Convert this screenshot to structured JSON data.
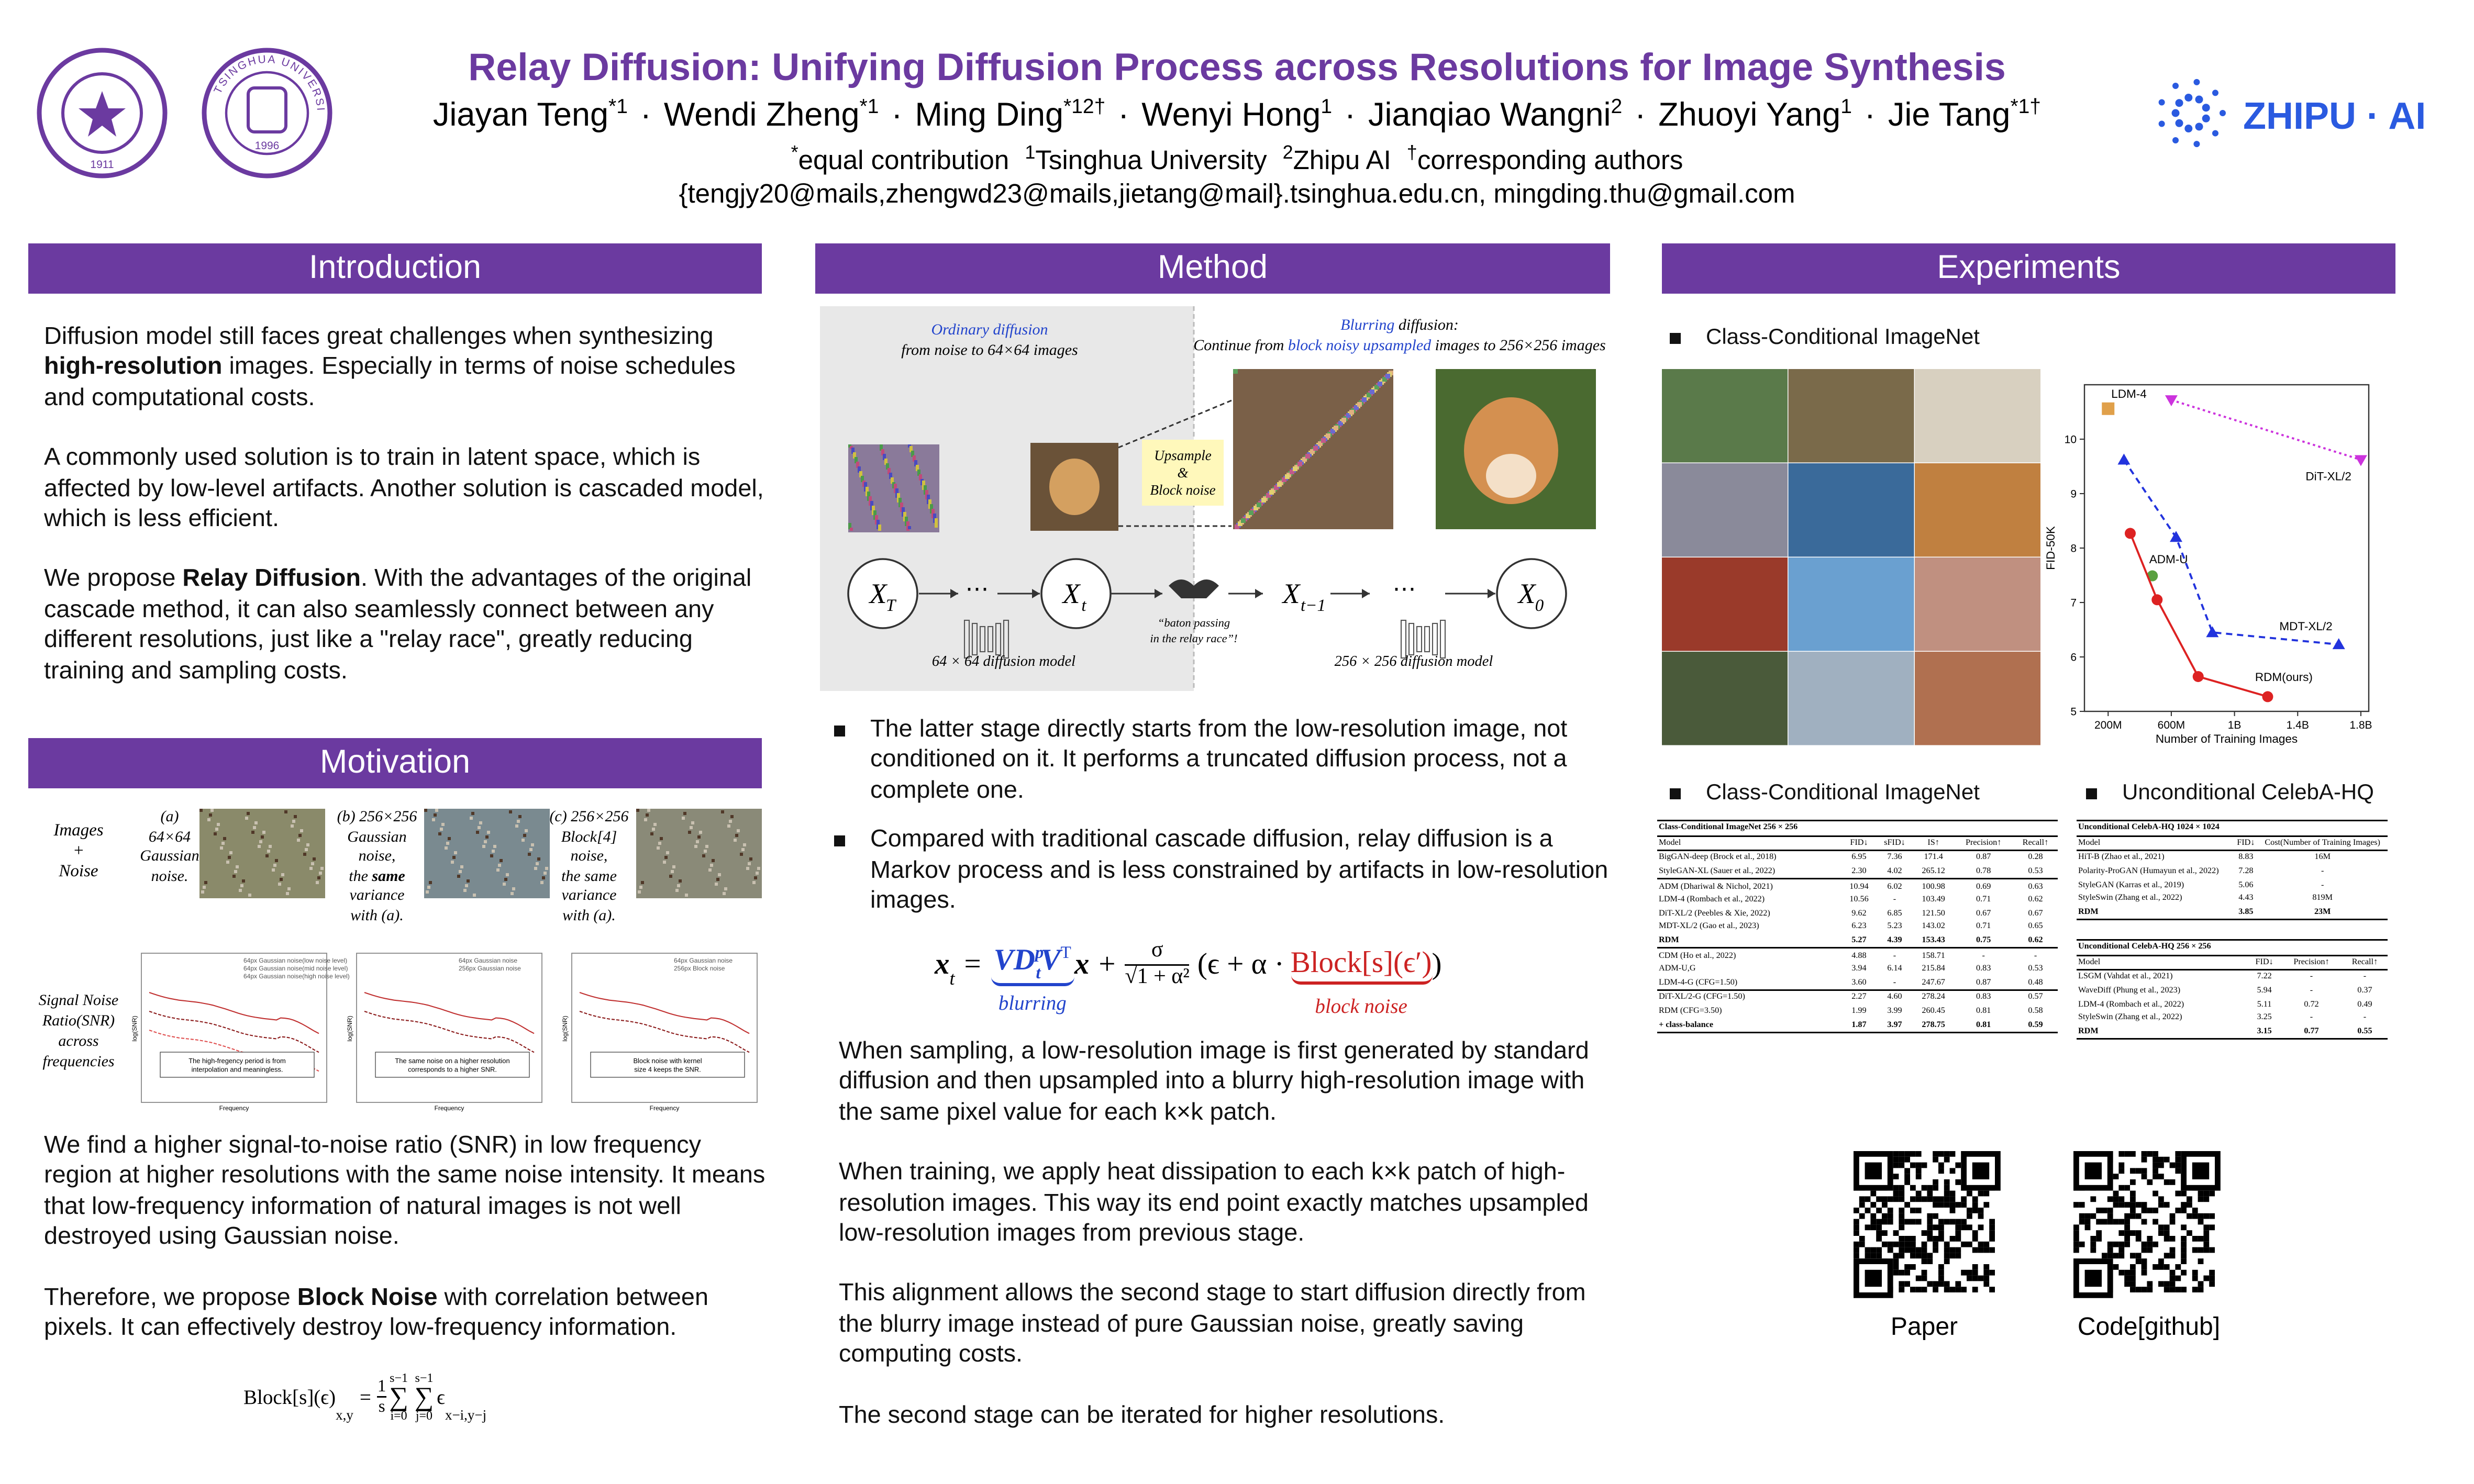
{
  "header": {
    "title": "Relay Diffusion: Unifying Diffusion Process across Resolutions for Image Synthesis",
    "authors": [
      {
        "name": "Jiayan Teng",
        "sup": "*1"
      },
      {
        "name": "Wendi Zheng",
        "sup": "*1"
      },
      {
        "name": "Ming Ding",
        "sup": "*12†"
      },
      {
        "name": "Wenyi Hong",
        "sup": "1"
      },
      {
        "name": "Jianqiao Wangni",
        "sup": "2"
      },
      {
        "name": "Zhuoyi Yang",
        "sup": "1"
      },
      {
        "name": "Jie Tang",
        "sup": "*1†"
      }
    ],
    "separator": "·",
    "affiliations": [
      {
        "sup": "*",
        "text": "equal contribution"
      },
      {
        "sup": "1",
        "text": "Tsinghua University"
      },
      {
        "sup": "2",
        "text": "Zhipu AI"
      },
      {
        "sup": "†",
        "text": "corresponding authors"
      }
    ],
    "emails": "{tengjy20@mails,zhengwd23@mails,jietang@mail}.tsinghua.edu.cn,  mingding.thu@gmail.com",
    "logos": {
      "seal_year": "1911",
      "emblem_year": "1996",
      "emblem_name": "TSINGHUA UNIVERSITY",
      "zhipu": "ZHIPU · AI"
    }
  },
  "introduction": {
    "heading": "Introduction",
    "paragraphs": [
      [
        "Diffusion model still faces great challenges when synthesizing ",
        "high-resolution",
        " images. Especially in terms of noise schedules and computational costs."
      ],
      [
        "A commonly used solution is to train in latent space, which is affected by low-level artifacts. Another solution is cascaded model, which is less efficient."
      ],
      [
        "We propose ",
        "Relay Diffusion",
        ". With the advantages of the original cascade method, it can also seamlessly connect between any different resolutions, just like a \"relay race\", greatly reducing training and sampling costs."
      ]
    ]
  },
  "motivation": {
    "heading": "Motivation",
    "row_label": [
      "Images",
      "+",
      "Noise"
    ],
    "panels": [
      [
        [
          "(a)"
        ],
        [
          "64×64"
        ],
        [
          "Gaussian"
        ],
        [
          "noise."
        ]
      ],
      [
        [
          "(b) 256×256"
        ],
        [
          "Gaussian"
        ],
        [
          "noise,"
        ],
        [
          "the ",
          "same"
        ],
        [
          "variance"
        ],
        [
          "with (a)."
        ]
      ],
      [
        [
          "(c) 256×256"
        ],
        [
          "Block[4]"
        ],
        [
          "noise,"
        ],
        [
          "the same"
        ],
        [
          "variance"
        ],
        [
          "with (a)."
        ]
      ]
    ],
    "plot_label": [
      "Signal Noise",
      "Ratio(SNR)",
      "across",
      "frequencies"
    ],
    "plots": [
      {
        "legend": [
          "64px Gaussian noise(low noise level)",
          "64px Gaussian noise(mid noise level)",
          "64px Gaussian noise(high noise level)"
        ],
        "note": [
          "The high-fregency period is from",
          "interpolation and meaningless."
        ]
      },
      {
        "legend": [
          "64px Gaussian noise",
          "256px Gaussian noise"
        ],
        "note": [
          "The same noise on a higher resolution",
          "corresponds to a higher SNR."
        ]
      },
      {
        "legend": [
          "64px Gaussian noise",
          "256px Block noise"
        ],
        "note": [
          "Block noise with kernel",
          "size 4 keeps the SNR."
        ]
      }
    ],
    "plot_xlabel": "Frequency",
    "plot_ylabel": "log(SNR)",
    "paragraphs": [
      [
        "We find a higher signal-to-noise ratio (SNR) in low frequency region at higher resolutions with the same noise intensity. It means that low-frequency information of natural images is not well destroyed using Gaussian noise."
      ],
      [
        "Therefore, we propose ",
        "Block Noise",
        " with correlation between pixels. It can effectively destroy low-frequency information."
      ]
    ],
    "formula": {
      "lhs": "Block[s](ϵ)",
      "lhs_sub": "x,y",
      "eq": "=",
      "num": "1",
      "den": "s",
      "sum": "∑",
      "sums": [
        {
          "top": "s−1",
          "bottom": "i=0"
        },
        {
          "top": "s−1",
          "bottom": "j=0"
        }
      ],
      "term": "ϵ",
      "term_sub": "x−i,y−j"
    }
  },
  "method": {
    "heading": "Method",
    "figure": {
      "ordinary": [
        [
          "Ordinary",
          " diffusion"
        ],
        [
          "from noise to 64×64 images"
        ]
      ],
      "blurring": [
        [
          "Blurring",
          " diffusion:"
        ],
        [
          "Continue from ",
          "block noisy upsampled",
          " images to 256×256 images"
        ]
      ],
      "upsample_label": [
        "Upsample",
        "&",
        "Block noise"
      ],
      "nodes": [
        {
          "base": "X",
          "sub": "T"
        },
        {
          "base": "X",
          "sub": "t"
        },
        {
          "base": "X",
          "sub": "t−1"
        },
        {
          "base": "X",
          "sub": "0"
        }
      ],
      "ellipsis": "⋯",
      "baton": [
        "“baton passing",
        "in the relay race”!"
      ],
      "models": [
        "64 × 64 diffusion model",
        "256 × 256 diffusion model"
      ]
    },
    "bullets": [
      "The latter stage directly starts from the low-resolution image, not conditioned on it. It performs a truncated diffusion process, not a complete one.",
      "Compared with traditional cascade diffusion, relay diffusion is a Markov process and is less constrained by artifacts in low-resolution images."
    ],
    "formula": {
      "lhs": "x",
      "lhs_sub": "t",
      "eq": "=",
      "blur": "VD",
      "blur_sup": "p",
      "blur_sub": "t",
      "blur_v": "V",
      "blur_vsup": "T",
      "x": "x",
      "plus": "+",
      "num": "σ",
      "root": "√",
      "den": "1 + α²",
      "open": "(ϵ + α ·",
      "block": "Block[s](ϵ′)",
      "close": ")",
      "blur_label": "blurring",
      "block_label": "block noise"
    },
    "paragraphs": [
      [
        "When sampling, a low-resolution image is first generated by standard diffusion and then upsampled into a blurry high-resolution image with the same pixel value for each k×k patch."
      ],
      [
        "When training, we apply heat dissipation to each k×k patch of high-resolution images. This way its end point exactly matches upsampled low-resolution images from previous stage."
      ],
      [
        "This alignment allows the second stage to start diffusion directly from the blurry image instead of pure Gaussian noise, greatly saving computing costs."
      ],
      [
        "The second stage can be iterated for higher resolutions."
      ]
    ]
  },
  "experiments": {
    "heading": "Experiments",
    "subheads": [
      "Class-Conditional ImageNet",
      "Class-Conditional ImageNet",
      "Unconditional CelebA-HQ"
    ],
    "chart": {
      "type": "line",
      "xlabel": "Number of Training Images",
      "ylabel": "FID-50K",
      "xlim": [
        50000000,
        1850000000
      ],
      "ylim": [
        5,
        11
      ],
      "xticks": [
        {
          "value": 200000000,
          "label": "200M"
        },
        {
          "value": 600000000,
          "label": "600M"
        },
        {
          "value": 1000000000,
          "label": "1B"
        },
        {
          "value": 1400000000,
          "label": "1.4B"
        },
        {
          "value": 1800000000,
          "label": "1.8B"
        }
      ],
      "yticks": [
        5,
        6,
        7,
        8,
        9,
        10
      ],
      "series": [
        {
          "name": "LDM-4",
          "color": "#e0a04a",
          "marker": "square",
          "x": [
            200000000
          ],
          "values": [
            10.56
          ]
        },
        {
          "name": "DiT-XL/2",
          "color": "#cc33dd",
          "marker": "triangle-down",
          "dash": "dotted",
          "x": [
            600000000,
            1800000000
          ],
          "values": [
            10.72,
            9.62
          ]
        },
        {
          "name": "ADM-U",
          "color": "#5aa040",
          "marker": "circle",
          "x": [
            480000000
          ],
          "values": [
            7.49
          ]
        },
        {
          "name": "MDT-XL/2",
          "color": "#2233dd",
          "marker": "triangle-up",
          "dash": "dashed",
          "x": [
            300000000,
            630000000,
            860000000,
            1660000000
          ],
          "values": [
            9.62,
            8.2,
            6.45,
            6.23
          ]
        },
        {
          "name": "RDM(ours)",
          "color": "#dd2222",
          "marker": "circle",
          "dash": "solid",
          "x": [
            340000000,
            510000000,
            770000000,
            1210000000
          ],
          "values": [
            8.27,
            7.05,
            5.64,
            5.27
          ]
        }
      ]
    },
    "tables": [
      {
        "title": "Class-Conditional ImageNet 256 × 256",
        "columns": [
          "Model",
          "FID↓",
          "sFID↓",
          "IS↑",
          "Precision↑",
          "Recall↑"
        ],
        "rows": [
          [
            "BigGAN-deep (Brock et al., 2018)",
            "6.95",
            "7.36",
            "171.4",
            "0.87",
            "0.28"
          ],
          [
            "StyleGAN-XL (Sauer et al., 2022)",
            "2.30",
            "4.02",
            "265.12",
            "0.78",
            "0.53"
          ],
          [
            "ADM (Dhariwal & Nichol, 2021)",
            "10.94",
            "6.02",
            "100.98",
            "0.69",
            "0.63"
          ],
          [
            "LDM-4 (Rombach et al., 2022)",
            "10.56",
            "-",
            "103.49",
            "0.71",
            "0.62"
          ],
          [
            "DiT-XL/2 (Peebles & Xie, 2022)",
            "9.62",
            "6.85",
            "121.50",
            "0.67",
            "0.67"
          ],
          [
            "MDT-XL/2 (Gao et al., 2023)",
            "6.23",
            "5.23",
            "143.02",
            "0.71",
            "0.65"
          ],
          [
            "RDM",
            "5.27",
            "4.39",
            "153.43",
            "0.75",
            "0.62"
          ],
          [
            "CDM (Ho et al., 2022)",
            "4.88",
            "-",
            "158.71",
            "-",
            "-"
          ],
          [
            "ADM-U,G",
            "3.94",
            "6.14",
            "215.84",
            "0.83",
            "0.53"
          ],
          [
            "LDM-4-G (CFG=1.50)",
            "3.60",
            "-",
            "247.67",
            "0.87",
            "0.48"
          ],
          [
            "DiT-XL/2-G (CFG=1.50)",
            "2.27",
            "4.60",
            "278.24",
            "0.83",
            "0.57"
          ],
          [
            "RDM (CFG=3.50)",
            "1.99",
            "3.99",
            "260.45",
            "0.81",
            "0.58"
          ],
          [
            "+ class-balance",
            "1.87",
            "3.97",
            "278.75",
            "0.81",
            "0.59"
          ]
        ],
        "bold_rows": [
          6,
          12
        ],
        "rules_after": [
          1,
          6,
          9
        ]
      },
      {
        "title": "Unconditional CelebA-HQ 1024 × 1024",
        "columns": [
          "Model",
          "FID↓",
          "Cost(Number of Training Images)"
        ],
        "rows": [
          [
            "HiT-B (Zhao et al., 2021)",
            "8.83",
            "16M"
          ],
          [
            "Polarity-ProGAN (Humayun et al., 2022)",
            "7.28",
            "-"
          ],
          [
            "StyleGAN (Karras et al., 2019)",
            "5.06",
            "-"
          ],
          [
            "StyleSwin (Zhang et al., 2022)",
            "4.43",
            "819M"
          ],
          [
            "RDM",
            "3.85",
            "23M"
          ]
        ],
        "bold_rows": [
          4
        ],
        "rules_after": []
      },
      {
        "title": "Unconditional CelebA-HQ 256 × 256",
        "columns": [
          "Model",
          "FID↓",
          "Precision↑",
          "Recall↑"
        ],
        "rows": [
          [
            "LSGM (Vahdat et al., 2021)",
            "7.22",
            "-",
            "-"
          ],
          [
            "WaveDiff (Phung et al., 2023)",
            "5.94",
            "-",
            "0.37"
          ],
          [
            "LDM-4 (Rombach et al., 2022)",
            "5.11",
            "0.72",
            "0.49"
          ],
          [
            "StyleSwin (Zhang et al., 2022)",
            "3.25",
            "-",
            "-"
          ],
          [
            "RDM",
            "3.15",
            "0.77",
            "0.55"
          ]
        ],
        "bold_rows": [
          4
        ],
        "rules_after": []
      }
    ],
    "qr_labels": [
      "Paper",
      "Code[github]"
    ]
  }
}
